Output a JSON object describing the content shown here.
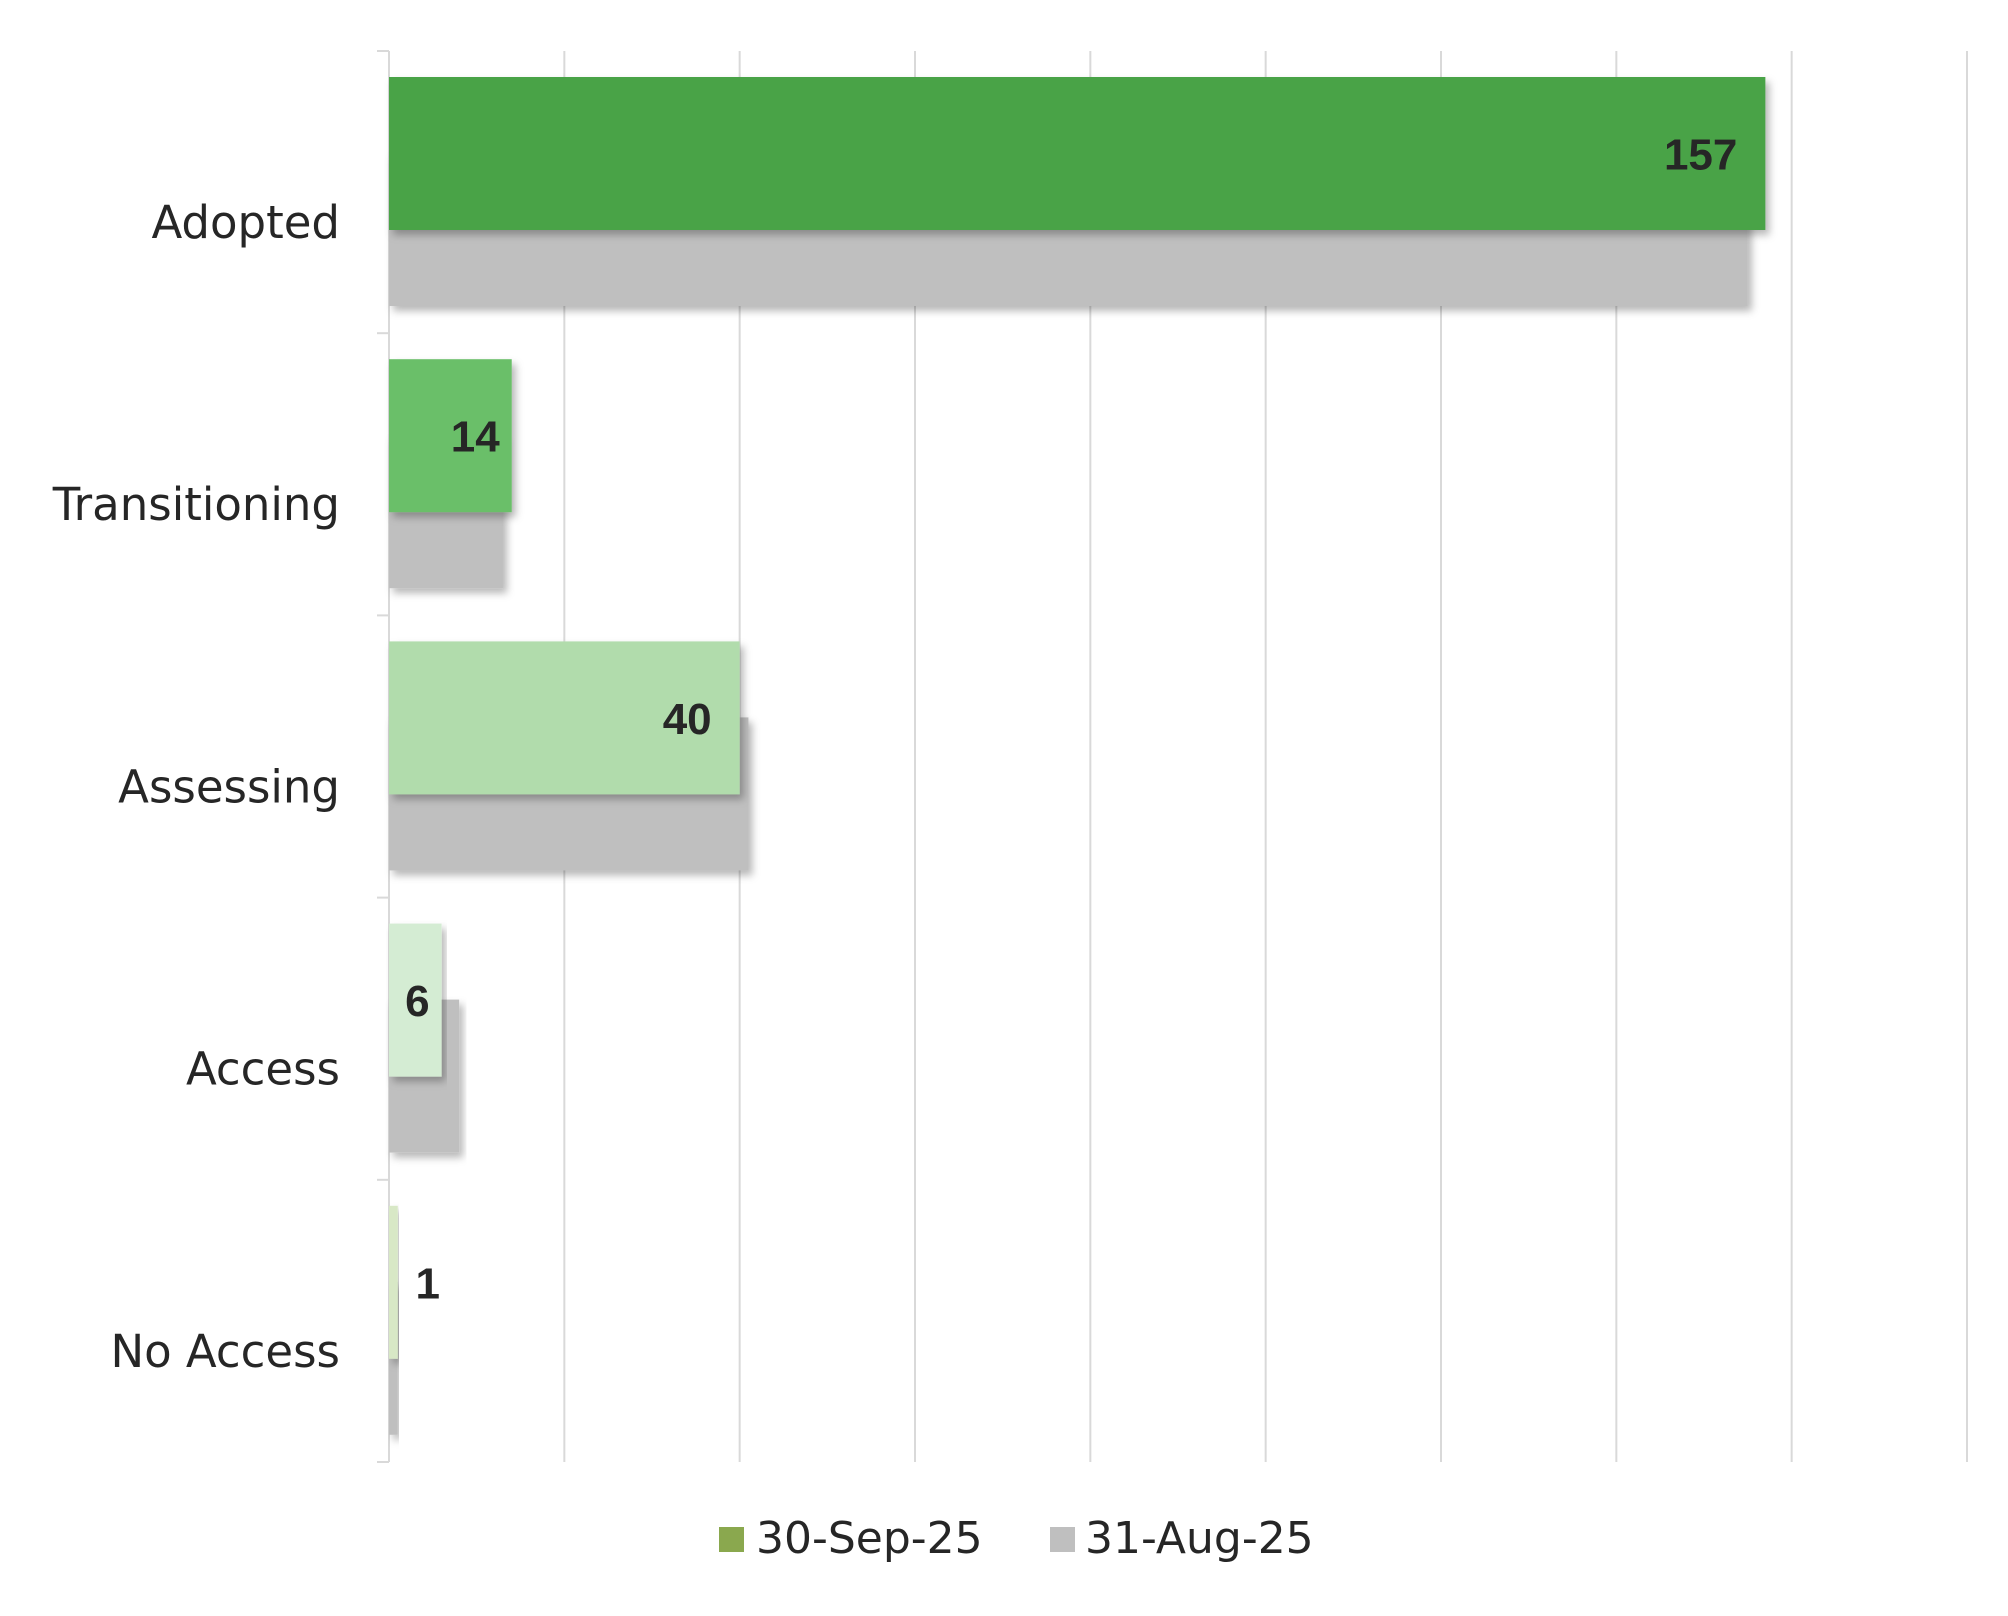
{
  "chart_data": {
    "type": "bar",
    "orientation": "horizontal",
    "categories": [
      "Adopted",
      "Transitioning",
      "Assessing",
      "Access",
      "No Access"
    ],
    "series": [
      {
        "name": "30-Sep-25",
        "values": [
          157,
          14,
          40,
          6,
          1
        ],
        "colors": [
          "#4aa347",
          "#6bbf69",
          "#b1dcac",
          "#d4ecd3",
          "#d8e8c6"
        ],
        "legend_color": "#8aa84e",
        "data_labels": true
      },
      {
        "name": "31-Aug-25",
        "values": [
          155,
          13,
          41,
          8,
          1
        ],
        "color": "#bfbfbf",
        "data_labels": false
      }
    ],
    "xlim": [
      0,
      180
    ],
    "x_grid_step": 20,
    "x_tick_labels_shown": false,
    "grid": true,
    "legend_position": "bottom",
    "title": "",
    "xlabel": "",
    "ylabel": ""
  }
}
